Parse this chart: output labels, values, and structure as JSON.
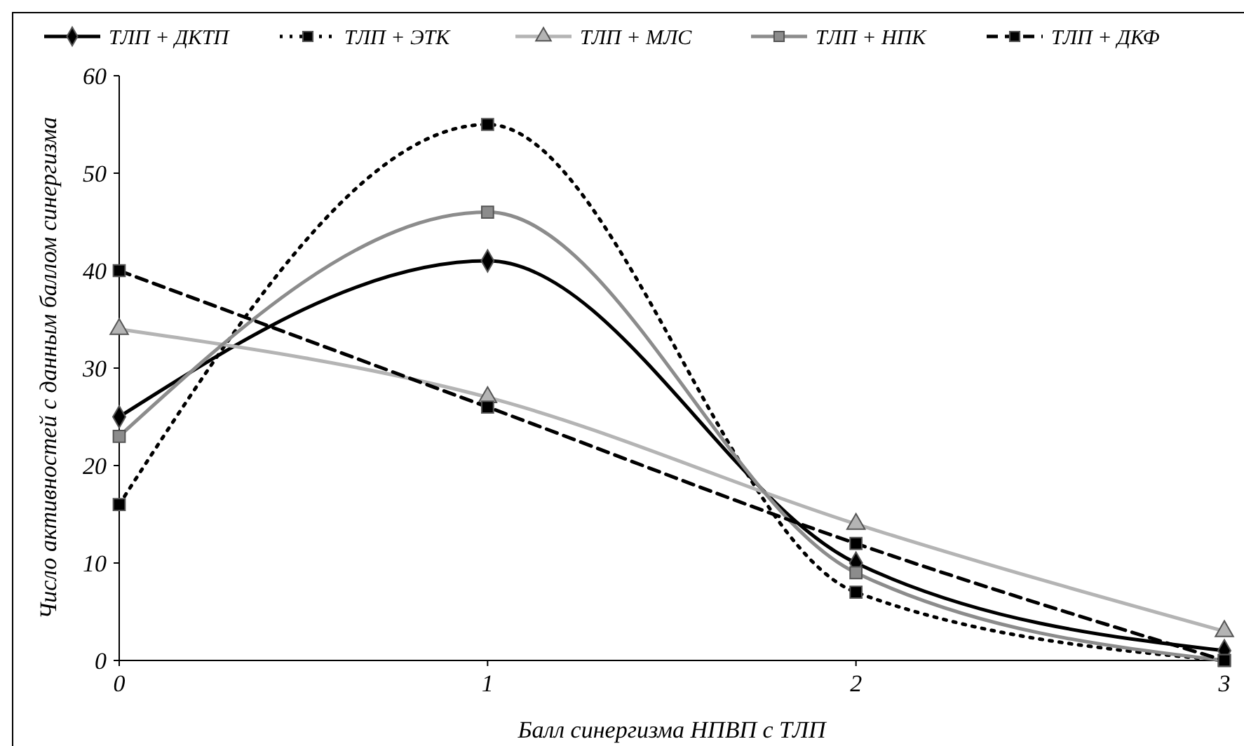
{
  "chart_data": {
    "type": "line",
    "xlabel": "Балл синергизма НПВП с ТЛП",
    "ylabel": "Число активностей с данным баллом синергизма",
    "x": [
      0,
      1,
      2,
      3
    ],
    "xlim": [
      0,
      3
    ],
    "xticks": [
      0,
      1,
      2,
      3
    ],
    "ylim": [
      0,
      60
    ],
    "yticks": [
      0,
      10,
      20,
      30,
      40,
      50,
      60
    ],
    "grid": false,
    "legend": "top",
    "series": [
      {
        "name": "ТЛП + ДКТП",
        "color": "#000000",
        "values": [
          25,
          41,
          10,
          1
        ],
        "marker": "diamond",
        "line_style": "solid"
      },
      {
        "name": "ТЛП + ЭТК",
        "color": "#000000",
        "values": [
          16,
          55,
          7,
          0
        ],
        "marker": "square",
        "line_style": "dotted"
      },
      {
        "name": "ТЛП + МЛС",
        "color": "#b4b4b4",
        "values": [
          34,
          27,
          14,
          3
        ],
        "marker": "triangle",
        "line_style": "solid"
      },
      {
        "name": "ТЛП + НПК",
        "color": "#8c8c8c",
        "values": [
          23,
          46,
          9,
          0
        ],
        "marker": "square",
        "line_style": "solid"
      },
      {
        "name": "ТЛП + ДКФ",
        "color": "#000000",
        "values": [
          40,
          26,
          12,
          0
        ],
        "marker": "square",
        "line_style": "dashed"
      }
    ]
  }
}
